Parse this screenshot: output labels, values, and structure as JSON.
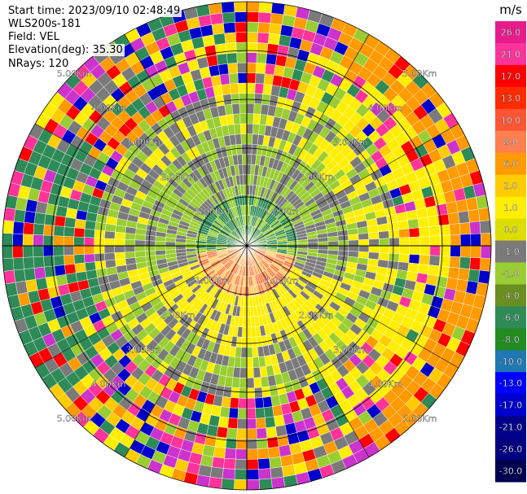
{
  "info": {
    "start_time": "Start time: 2023/09/10 02:48:49",
    "site": "WLS200s-181",
    "field": "Field: VEL",
    "elevation": "Elevation(deg): 35.30",
    "nrays": "NRays: 120"
  },
  "chart_data": {
    "type": "ppi",
    "field": "VEL",
    "n_rays": 120,
    "units": "m/s",
    "ring_labels": [
      "1.0Km",
      "2.0Km",
      "3.0Km",
      "4.0Km",
      "5.0Km"
    ],
    "ring_label_text": {
      "r1": "1.00Km",
      "r2": "2.00Km",
      "r3": "3.00Km",
      "r4": "4.00Km",
      "r5": "5.00Km"
    },
    "colorbar": {
      "unit_label": "m/s",
      "ticks": [
        "26.0",
        "21.0",
        "17.0",
        "13.0",
        "10.0",
        "8.0",
        "6.0",
        "2.0",
        "1.0",
        "0.0",
        "-1.0",
        "-2.0",
        "-4.0",
        "-6.0",
        "-8.0",
        "-10.0",
        "-13.0",
        "-17.0",
        "-21.0",
        "-26.0",
        "-30.0"
      ],
      "colors": [
        "#e81b8c",
        "#ff3399",
        "#ff0000",
        "#ff2a00",
        "#ff5533",
        "#ff7f50",
        "#ff9a00",
        "#ffcc00",
        "#ffee00",
        "#dddd00",
        "#7a7a7a",
        "#9acd32",
        "#6b8e23",
        "#2e8b57",
        "#228b22",
        "#1f77b4",
        "#0000ff",
        "#0000cd",
        "#00008b",
        "#000080",
        "#000050"
      ]
    },
    "colors": {
      "pos_high": "#ff3399",
      "pos_mid": "#ff9a00",
      "pos_low": "#ffee00",
      "zero": "#7a7a7a",
      "neg_low": "#9acd32",
      "neg_mid": "#2e8b57",
      "neg_high": "#0000cd",
      "magenta": "#cc33cc"
    }
  }
}
